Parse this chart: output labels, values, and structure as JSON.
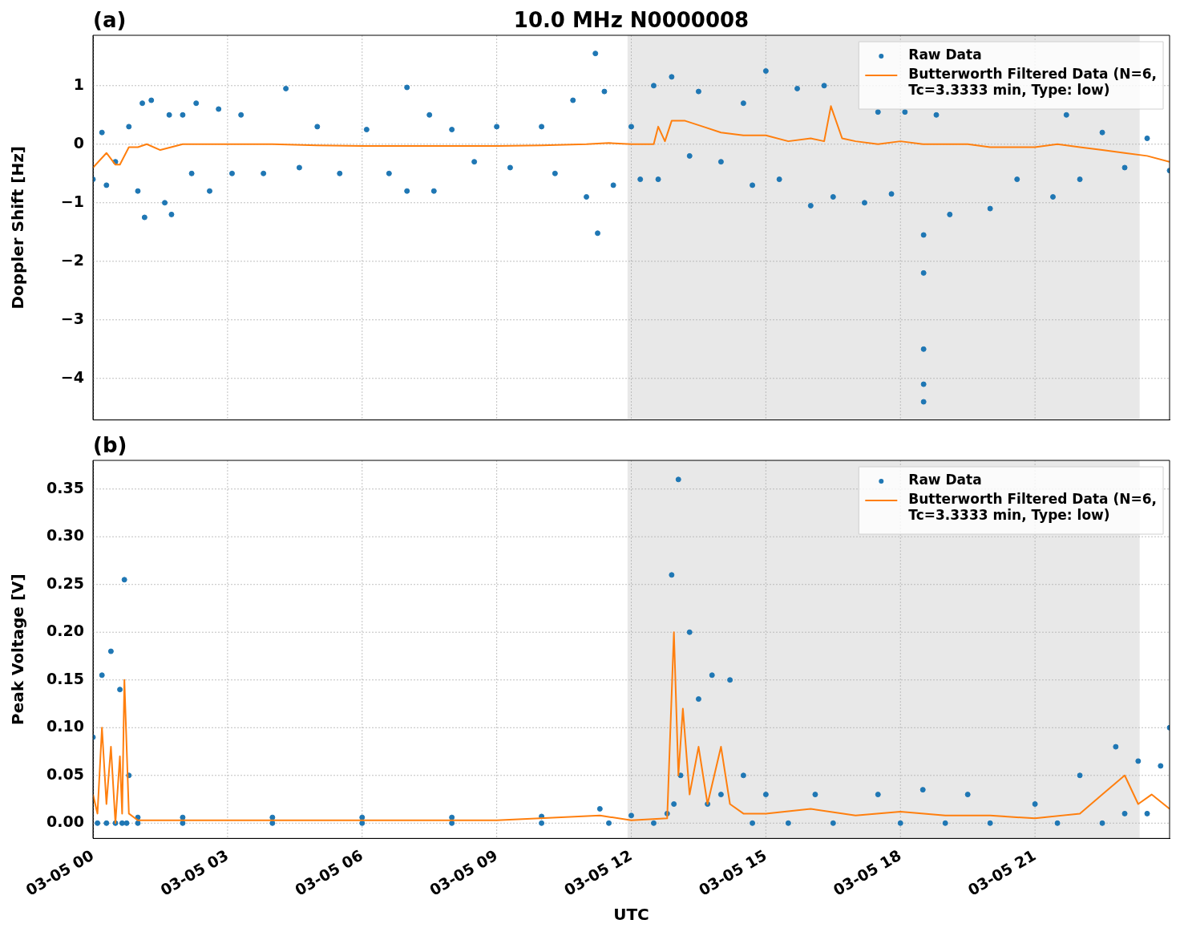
{
  "chart_data": [
    {
      "type": "scatter",
      "title": "10.0 MHz N0000008",
      "annotations": [
        "(a)"
      ],
      "ylabel": "Doppler Shift [Hz]",
      "xlim": [
        "--03-05T00:00",
        "--03-06T00:00"
      ],
      "xticks": [
        "--03-05T00:00",
        "--03-05T03:00",
        "--03-05T06:00",
        "--03-05T09:00",
        "--03-05T12:00",
        "--03-05T15:00",
        "--03-05T18:00",
        "--03-05T21:00"
      ],
      "ylim": [
        -4.71,
        1.86
      ],
      "yticks": [
        {
          "value": -4,
          "label": "−4"
        },
        {
          "value": -3,
          "label": "−3"
        },
        {
          "value": -2,
          "label": "−2"
        },
        {
          "value": -1,
          "label": "−1"
        },
        0,
        1
      ],
      "tick_labels": "y",
      "grid": true,
      "legend": "top right",
      "bands": [
        {
          "axis": "x",
          "from": "--03-05T11:55",
          "to": "--03-05T23:20",
          "color": "#e8e8e8"
        }
      ],
      "series": [
        {
          "name": "Raw Data",
          "type": "scatter",
          "marker": "circle",
          "color": "#1f77b4",
          "x": [
            "--03-05T00:00",
            "--03-05T00:12",
            "--03-05T00:18",
            "--03-05T00:30",
            "--03-05T00:48",
            "--03-05T01:00",
            "--03-05T01:06",
            "--03-05T01:09",
            "--03-05T01:18",
            "--03-05T01:36",
            "--03-05T01:42",
            "--03-05T01:45",
            "--03-05T02:00",
            "--03-05T02:12",
            "--03-05T02:18",
            "--03-05T02:36",
            "--03-05T02:48",
            "--03-05T03:06",
            "--03-05T03:18",
            "--03-05T03:48",
            "--03-05T04:18",
            "--03-05T04:36",
            "--03-05T05:00",
            "--03-05T05:30",
            "--03-05T06:06",
            "--03-05T06:36",
            "--03-05T07:00",
            "--03-05T07:00",
            "--03-05T07:30",
            "--03-05T07:36",
            "--03-05T08:00",
            "--03-05T08:30",
            "--03-05T09:00",
            "--03-05T09:18",
            "--03-05T10:00",
            "--03-05T10:18",
            "--03-05T10:42",
            "--03-05T11:00",
            "--03-05T11:12",
            "--03-05T11:15",
            "--03-05T11:24",
            "--03-05T11:36",
            "--03-05T12:00",
            "--03-05T12:12",
            "--03-05T12:30",
            "--03-05T12:36",
            "--03-05T12:54",
            "--03-05T13:18",
            "--03-05T13:30",
            "--03-05T14:00",
            "--03-05T14:30",
            "--03-05T14:42",
            "--03-05T15:00",
            "--03-05T15:18",
            "--03-05T15:42",
            "--03-05T16:00",
            "--03-05T16:18",
            "--03-05T16:30",
            "--03-05T16:48",
            "--03-05T17:12",
            "--03-05T17:30",
            "--03-05T17:48",
            "--03-05T18:06",
            "--03-05T18:31",
            "--03-05T18:31",
            "--03-05T18:31",
            "--03-05T18:31",
            "--03-05T18:31",
            "--03-05T18:48",
            "--03-05T19:06",
            "--03-05T19:30",
            "--03-05T20:00",
            "--03-05T20:12",
            "--03-05T20:36",
            "--03-05T21:00",
            "--03-05T21:24",
            "--03-05T21:42",
            "--03-05T22:00",
            "--03-05T22:30",
            "--03-05T23:00",
            "--03-05T23:30",
            "--03-06T00:00"
          ],
          "values": [
            -0.6,
            0.2,
            -0.7,
            -0.3,
            0.3,
            -0.8,
            0.7,
            -1.25,
            0.75,
            -1.0,
            0.5,
            -1.2,
            0.5,
            -0.5,
            0.7,
            -0.8,
            0.6,
            -0.5,
            0.5,
            -0.5,
            0.95,
            -0.4,
            0.3,
            -0.5,
            0.25,
            -0.5,
            0.97,
            -0.8,
            0.5,
            -0.8,
            0.25,
            -0.3,
            0.3,
            -0.4,
            0.3,
            -0.5,
            0.75,
            -0.9,
            1.55,
            -1.52,
            0.9,
            -0.7,
            0.3,
            -0.6,
            1.0,
            -0.6,
            1.15,
            -0.2,
            0.9,
            -0.3,
            0.7,
            -0.7,
            1.25,
            -0.6,
            0.95,
            -1.05,
            1.0,
            -0.9,
            null,
            -1.0,
            0.55,
            -0.85,
            0.55,
            -1.55,
            -2.2,
            -3.5,
            -4.1,
            -4.4,
            0.5,
            -1.2,
            null,
            -1.1,
            null,
            -0.6,
            null,
            -0.9,
            0.5,
            -0.6,
            0.2,
            -0.4,
            0.1,
            -0.45
          ]
        },
        {
          "name": "Butterworth Filtered Data (N=6, Tc=3.3333 min, Type: low)",
          "type": "line",
          "marker": "none",
          "line_style": "solid",
          "color": "#ff7f0e",
          "x": [
            "--03-05T00:00",
            "--03-05T00:18",
            "--03-05T00:30",
            "--03-05T00:36",
            "--03-05T00:48",
            "--03-05T01:00",
            "--03-05T01:12",
            "--03-05T01:30",
            "--03-05T02:00",
            "--03-05T03:00",
            "--03-05T04:00",
            "--03-05T05:00",
            "--03-05T06:00",
            "--03-05T07:00",
            "--03-05T08:00",
            "--03-05T09:00",
            "--03-05T10:00",
            "--03-05T11:00",
            "--03-05T11:30",
            "--03-05T12:00",
            "--03-05T12:30",
            "--03-05T12:36",
            "--03-05T12:45",
            "--03-05T12:54",
            "--03-05T13:12",
            "--03-05T13:36",
            "--03-05T14:00",
            "--03-05T14:30",
            "--03-05T15:00",
            "--03-05T15:30",
            "--03-05T16:00",
            "--03-05T16:18",
            "--03-05T16:27",
            "--03-05T16:42",
            "--03-05T17:00",
            "--03-05T17:30",
            "--03-05T18:00",
            "--03-05T18:30",
            "--03-05T19:00",
            "--03-05T19:30",
            "--03-05T20:00",
            "--03-05T20:30",
            "--03-05T21:00",
            "--03-05T21:30",
            "--03-05T22:00",
            "--03-05T22:30",
            "--03-05T23:00",
            "--03-05T23:30",
            "--03-06T00:00"
          ],
          "values": [
            -0.4,
            -0.15,
            -0.35,
            -0.35,
            -0.05,
            -0.05,
            0.0,
            -0.1,
            0.0,
            0.0,
            0.0,
            -0.02,
            -0.03,
            -0.03,
            -0.03,
            -0.03,
            -0.02,
            0.0,
            0.02,
            0.0,
            0.0,
            0.3,
            0.05,
            0.4,
            0.4,
            0.3,
            0.2,
            0.15,
            0.15,
            0.05,
            0.1,
            0.05,
            0.65,
            0.1,
            0.05,
            0.0,
            0.05,
            0.0,
            0.0,
            0.0,
            -0.05,
            -0.05,
            -0.05,
            0.0,
            -0.05,
            -0.1,
            -0.15,
            -0.2,
            -0.3
          ]
        }
      ]
    },
    {
      "type": "scatter",
      "annotations": [
        "(b)"
      ],
      "xlabel": "UTC",
      "ylabel": "Peak Voltage [V]",
      "xlim": [
        "--03-05T00:00",
        "--03-06T00:00"
      ],
      "xticks": [
        {
          "value": "--03-05T00:00",
          "label": "03-05 00"
        },
        {
          "value": "--03-05T03:00",
          "label": "03-05 03"
        },
        {
          "value": "--03-05T06:00",
          "label": "03-05 06"
        },
        {
          "value": "--03-05T09:00",
          "label": "03-05 09"
        },
        {
          "value": "--03-05T12:00",
          "label": "03-05 12"
        },
        {
          "value": "--03-05T15:00",
          "label": "03-05 15"
        },
        {
          "value": "--03-05T18:00",
          "label": "03-05 18"
        },
        {
          "value": "--03-05T21:00",
          "label": "03-05 21"
        }
      ],
      "ylim": [
        -0.016,
        0.38
      ],
      "yticks": [
        {
          "value": 0,
          "label": "0.00"
        },
        {
          "value": 0.05,
          "label": "0.05"
        },
        {
          "value": 0.1,
          "label": "0.10"
        },
        {
          "value": 0.15,
          "label": "0.15"
        },
        {
          "value": 0.2,
          "label": "0.20"
        },
        {
          "value": 0.25,
          "label": "0.25"
        },
        {
          "value": 0.3,
          "label": "0.30"
        },
        {
          "value": 0.35,
          "label": "0.35"
        }
      ],
      "grid": true,
      "legend": "top right",
      "bands": [
        {
          "axis": "x",
          "from": "--03-05T11:55",
          "to": "--03-05T23:20",
          "color": "#e8e8e8"
        }
      ],
      "series": [
        {
          "name": "Raw Data",
          "type": "scatter",
          "marker": "circle",
          "color": "#1f77b4",
          "x": [
            "--03-05T00:00",
            "--03-05T00:06",
            "--03-05T00:12",
            "--03-05T00:18",
            "--03-05T00:24",
            "--03-05T00:30",
            "--03-05T00:36",
            "--03-05T00:39",
            "--03-05T00:42",
            "--03-05T00:45",
            "--03-05T00:48",
            "--03-05T01:00",
            "--03-05T01:00",
            "--03-05T02:00",
            "--03-05T02:00",
            "--03-05T04:00",
            "--03-05T04:00",
            "--03-05T06:00",
            "--03-05T06:00",
            "--03-05T08:00",
            "--03-05T08:00",
            "--03-05T10:00",
            "--03-05T10:00",
            "--03-05T11:18",
            "--03-05T11:30",
            "--03-05T12:00",
            "--03-05T12:30",
            "--03-05T12:48",
            "--03-05T12:54",
            "--03-05T12:57",
            "--03-05T13:03",
            "--03-05T13:06",
            "--03-05T13:18",
            "--03-05T13:30",
            "--03-05T13:42",
            "--03-05T13:48",
            "--03-05T14:00",
            "--03-05T14:12",
            "--03-05T14:30",
            "--03-05T14:42",
            "--03-05T15:00",
            "--03-05T15:30",
            "--03-05T16:06",
            "--03-05T16:30",
            "--03-05T17:30",
            "--03-05T18:00",
            "--03-05T18:30",
            "--03-05T19:00",
            "--03-05T19:30",
            "--03-05T20:00",
            "--03-05T21:00",
            "--03-05T21:30",
            "--03-05T22:00",
            "--03-05T22:30",
            "--03-05T22:48",
            "--03-05T23:00",
            "--03-05T23:18",
            "--03-05T23:30",
            "--03-05T23:48",
            "--03-06T00:00"
          ],
          "values": [
            0.09,
            0.0,
            0.155,
            0.0,
            0.18,
            0.0,
            0.14,
            0.0,
            0.255,
            0.0,
            0.05,
            0.0,
            0.006,
            0.006,
            0.0,
            0.006,
            0.0,
            0.006,
            0.0,
            0.006,
            0.0,
            0.007,
            0.0,
            0.015,
            0.0,
            0.008,
            0.0,
            0.01,
            0.26,
            0.02,
            0.36,
            0.05,
            0.2,
            0.13,
            0.02,
            0.155,
            0.03,
            0.15,
            0.05,
            0.0,
            0.03,
            0.0,
            0.03,
            0.0,
            0.03,
            0.0,
            0.035,
            0.0,
            0.03,
            0.0,
            0.02,
            0.0,
            0.05,
            0.0,
            0.08,
            0.01,
            0.065,
            0.01,
            0.06,
            0.1
          ]
        },
        {
          "name": "Butterworth Filtered Data (N=6, Tc=3.3333 min, Type: low)",
          "type": "line",
          "marker": "none",
          "line_style": "solid",
          "color": "#ff7f0e",
          "x": [
            "--03-05T00:00",
            "--03-05T00:06",
            "--03-05T00:12",
            "--03-05T00:18",
            "--03-05T00:24",
            "--03-05T00:30",
            "--03-05T00:36",
            "--03-05T00:39",
            "--03-05T00:42",
            "--03-05T00:48",
            "--03-05T01:00",
            "--03-05T03:00",
            "--03-05T06:00",
            "--03-05T09:00",
            "--03-05T11:18",
            "--03-05T12:00",
            "--03-05T12:48",
            "--03-05T12:57",
            "--03-05T13:03",
            "--03-05T13:09",
            "--03-05T13:18",
            "--03-05T13:30",
            "--03-05T13:42",
            "--03-05T14:00",
            "--03-05T14:12",
            "--03-05T14:30",
            "--03-05T15:00",
            "--03-05T16:00",
            "--03-05T17:00",
            "--03-05T18:00",
            "--03-05T19:00",
            "--03-05T20:00",
            "--03-05T21:00",
            "--03-05T22:00",
            "--03-05T22:30",
            "--03-05T23:00",
            "--03-05T23:18",
            "--03-05T23:36",
            "--03-06T00:00"
          ],
          "values": [
            0.03,
            0.01,
            0.1,
            0.02,
            0.08,
            0.0,
            0.07,
            0.01,
            0.15,
            0.01,
            0.003,
            0.003,
            0.003,
            0.003,
            0.008,
            0.003,
            0.005,
            0.2,
            0.05,
            0.12,
            0.03,
            0.08,
            0.02,
            0.08,
            0.02,
            0.01,
            0.01,
            0.015,
            0.008,
            0.012,
            0.008,
            0.008,
            0.005,
            0.01,
            0.03,
            0.05,
            0.02,
            0.03,
            0.015
          ]
        }
      ]
    }
  ]
}
